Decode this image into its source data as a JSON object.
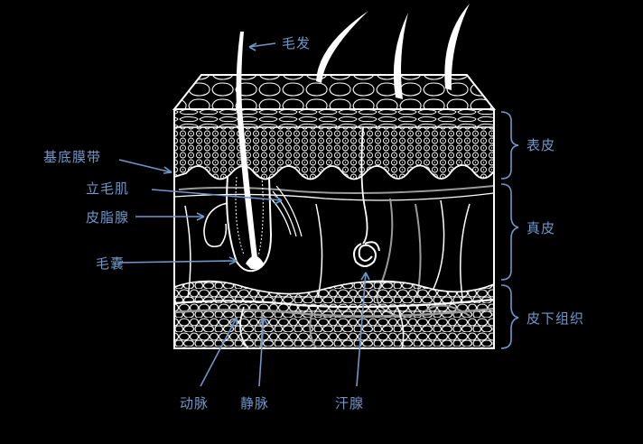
{
  "labels": {
    "hair": "毛发",
    "basement_membrane": "基底膜带",
    "arrector_pili": "立毛肌",
    "sebaceous_gland": "皮脂腺",
    "hair_follicle": "毛囊",
    "artery": "动脉",
    "vein": "静脉",
    "sweat_gland": "汗腺"
  },
  "layers": {
    "epidermis": "表皮",
    "dermis": "真皮",
    "subcutaneous": "皮下组织"
  },
  "colors": {
    "background": "#000000",
    "label": "#6f97c9",
    "line": "#ffffff",
    "vessel": "#9a9a9a"
  }
}
